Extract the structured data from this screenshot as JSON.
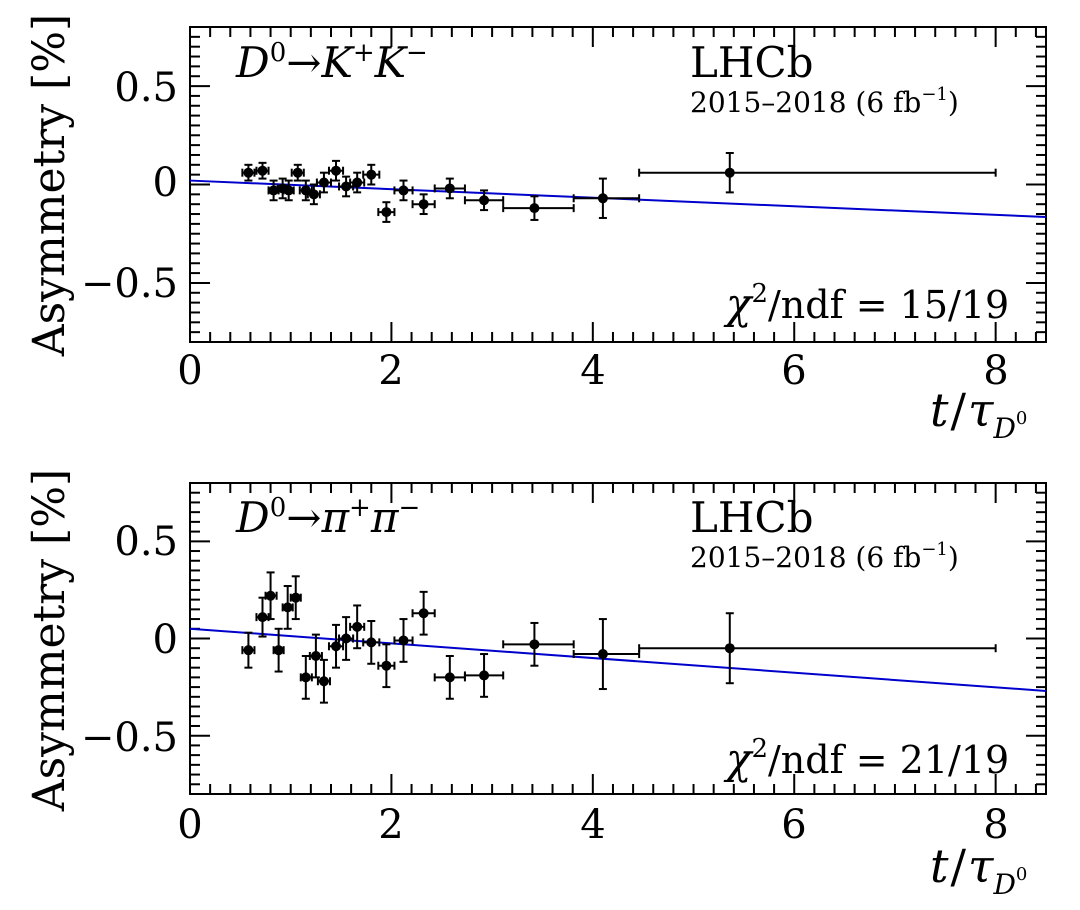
{
  "colors": {
    "fit": "#0000cc",
    "points": "#000000",
    "frame": "#000000"
  },
  "chart_data": [
    {
      "type": "scatter",
      "name": "kk",
      "decay_prefix": "D",
      "decay_prefix_sup": "0",
      "decay_arrow": "→",
      "decay_p1": "K",
      "decay_p1_sup": "+",
      "decay_p2": "K",
      "decay_p2_sup": "−",
      "experiment": "LHCb",
      "dataset_prefix": "2015–2018 (6 fb",
      "dataset_sup": "−1",
      "dataset_suffix": ")",
      "chi2_symbol": "χ",
      "chi2_sup": "2",
      "chi2_rest": "/ndf = 15/19",
      "ylabel": "Asymmetry [%]",
      "xlabel_t": "t",
      "xlabel_slash": "/",
      "xlabel_tau": "τ",
      "xlabel_sub": "D",
      "xlabel_subsup": "0",
      "xlim": [
        0,
        8.5
      ],
      "ylim": [
        -0.8,
        0.8
      ],
      "xticks": [
        0,
        2,
        4,
        6,
        8
      ],
      "xtick_labels": [
        "0",
        "2",
        "4",
        "6",
        "8"
      ],
      "yticks": [
        0.5,
        0,
        -0.5
      ],
      "ytick_labels": [
        "0.5",
        "0",
        "−0.5"
      ],
      "fit_line": {
        "x": [
          0,
          8.5
        ],
        "y": [
          0.02,
          -0.165
        ]
      },
      "points": [
        {
          "x": 0.58,
          "y": 0.06,
          "xlo": 0.52,
          "xhi": 0.64,
          "ylo": 0.02,
          "yhi": 0.1
        },
        {
          "x": 0.72,
          "y": 0.07,
          "xlo": 0.66,
          "xhi": 0.78,
          "ylo": 0.03,
          "yhi": 0.11
        },
        {
          "x": 0.83,
          "y": -0.03,
          "xlo": 0.78,
          "xhi": 0.88,
          "ylo": -0.08,
          "yhi": 0.02
        },
        {
          "x": 0.92,
          "y": -0.02,
          "xlo": 0.87,
          "xhi": 0.97,
          "ylo": -0.07,
          "yhi": 0.03
        },
        {
          "x": 0.98,
          "y": -0.03,
          "xlo": 0.93,
          "xhi": 1.03,
          "ylo": -0.08,
          "yhi": 0.02
        },
        {
          "x": 1.07,
          "y": 0.06,
          "xlo": 1.01,
          "xhi": 1.13,
          "ylo": 0.02,
          "yhi": 0.1
        },
        {
          "x": 1.15,
          "y": -0.03,
          "xlo": 1.09,
          "xhi": 1.21,
          "ylo": -0.08,
          "yhi": 0.02
        },
        {
          "x": 1.23,
          "y": -0.05,
          "xlo": 1.17,
          "xhi": 1.29,
          "ylo": -0.1,
          "yhi": 0.0
        },
        {
          "x": 1.33,
          "y": 0.01,
          "xlo": 1.26,
          "xhi": 1.4,
          "ylo": -0.04,
          "yhi": 0.06
        },
        {
          "x": 1.45,
          "y": 0.07,
          "xlo": 1.38,
          "xhi": 1.52,
          "ylo": 0.02,
          "yhi": 0.12
        },
        {
          "x": 1.55,
          "y": -0.01,
          "xlo": 1.48,
          "xhi": 1.62,
          "ylo": -0.06,
          "yhi": 0.04
        },
        {
          "x": 1.66,
          "y": 0.01,
          "xlo": 1.59,
          "xhi": 1.73,
          "ylo": -0.04,
          "yhi": 0.06
        },
        {
          "x": 1.8,
          "y": 0.05,
          "xlo": 1.72,
          "xhi": 1.88,
          "ylo": 0.0,
          "yhi": 0.1
        },
        {
          "x": 1.95,
          "y": -0.14,
          "xlo": 1.87,
          "xhi": 2.03,
          "ylo": -0.19,
          "yhi": -0.09
        },
        {
          "x": 2.12,
          "y": -0.03,
          "xlo": 2.03,
          "xhi": 2.21,
          "ylo": -0.08,
          "yhi": 0.02
        },
        {
          "x": 2.32,
          "y": -0.1,
          "xlo": 2.21,
          "xhi": 2.43,
          "ylo": -0.15,
          "yhi": -0.05
        },
        {
          "x": 2.58,
          "y": -0.02,
          "xlo": 2.43,
          "xhi": 2.73,
          "ylo": -0.07,
          "yhi": 0.03
        },
        {
          "x": 2.92,
          "y": -0.08,
          "xlo": 2.73,
          "xhi": 3.11,
          "ylo": -0.13,
          "yhi": -0.03
        },
        {
          "x": 3.42,
          "y": -0.12,
          "xlo": 3.11,
          "xhi": 3.81,
          "ylo": -0.18,
          "yhi": -0.06
        },
        {
          "x": 4.1,
          "y": -0.07,
          "xlo": 3.81,
          "xhi": 4.46,
          "ylo": -0.17,
          "yhi": 0.03
        },
        {
          "x": 5.36,
          "y": 0.06,
          "xlo": 4.46,
          "xhi": 8.0,
          "ylo": -0.04,
          "yhi": 0.16
        }
      ]
    },
    {
      "type": "scatter",
      "name": "pipi",
      "decay_prefix": "D",
      "decay_prefix_sup": "0",
      "decay_arrow": "→",
      "decay_p1": "π",
      "decay_p1_sup": "+",
      "decay_p2": "π",
      "decay_p2_sup": "−",
      "experiment": "LHCb",
      "dataset_prefix": "2015–2018 (6 fb",
      "dataset_sup": "−1",
      "dataset_suffix": ")",
      "chi2_symbol": "χ",
      "chi2_sup": "2",
      "chi2_rest": "/ndf = 21/19",
      "ylabel": "Asymmetry [%]",
      "xlabel_t": "t",
      "xlabel_slash": "/",
      "xlabel_tau": "τ",
      "xlabel_sub": "D",
      "xlabel_subsup": "0",
      "xlim": [
        0,
        8.5
      ],
      "ylim": [
        -0.8,
        0.8
      ],
      "xticks": [
        0,
        2,
        4,
        6,
        8
      ],
      "xtick_labels": [
        "0",
        "2",
        "4",
        "6",
        "8"
      ],
      "yticks": [
        0.5,
        0,
        -0.5
      ],
      "ytick_labels": [
        "0.5",
        "0",
        "−0.5"
      ],
      "fit_line": {
        "x": [
          0,
          8.5
        ],
        "y": [
          0.05,
          -0.27
        ]
      },
      "points": [
        {
          "x": 0.58,
          "y": -0.06,
          "xlo": 0.52,
          "xhi": 0.64,
          "ylo": -0.15,
          "yhi": 0.03
        },
        {
          "x": 0.72,
          "y": 0.11,
          "xlo": 0.66,
          "xhi": 0.78,
          "ylo": 0.01,
          "yhi": 0.21
        },
        {
          "x": 0.8,
          "y": 0.22,
          "xlo": 0.75,
          "xhi": 0.86,
          "ylo": 0.1,
          "yhi": 0.34
        },
        {
          "x": 0.88,
          "y": -0.06,
          "xlo": 0.83,
          "xhi": 0.93,
          "ylo": -0.17,
          "yhi": 0.05
        },
        {
          "x": 0.97,
          "y": 0.16,
          "xlo": 0.92,
          "xhi": 1.02,
          "ylo": 0.05,
          "yhi": 0.27
        },
        {
          "x": 1.05,
          "y": 0.21,
          "xlo": 1.0,
          "xhi": 1.1,
          "ylo": 0.1,
          "yhi": 0.32
        },
        {
          "x": 1.15,
          "y": -0.2,
          "xlo": 1.1,
          "xhi": 1.21,
          "ylo": -0.31,
          "yhi": -0.09
        },
        {
          "x": 1.25,
          "y": -0.09,
          "xlo": 1.19,
          "xhi": 1.31,
          "ylo": -0.2,
          "yhi": 0.02
        },
        {
          "x": 1.33,
          "y": -0.22,
          "xlo": 1.27,
          "xhi": 1.39,
          "ylo": -0.33,
          "yhi": -0.11
        },
        {
          "x": 1.45,
          "y": -0.04,
          "xlo": 1.38,
          "xhi": 1.52,
          "ylo": -0.15,
          "yhi": 0.07
        },
        {
          "x": 1.55,
          "y": 0.0,
          "xlo": 1.48,
          "xhi": 1.62,
          "ylo": -0.11,
          "yhi": 0.11
        },
        {
          "x": 1.66,
          "y": 0.06,
          "xlo": 1.59,
          "xhi": 1.73,
          "ylo": -0.05,
          "yhi": 0.17
        },
        {
          "x": 1.8,
          "y": -0.02,
          "xlo": 1.72,
          "xhi": 1.88,
          "ylo": -0.13,
          "yhi": 0.09
        },
        {
          "x": 1.95,
          "y": -0.14,
          "xlo": 1.87,
          "xhi": 2.03,
          "ylo": -0.25,
          "yhi": -0.03
        },
        {
          "x": 2.12,
          "y": -0.01,
          "xlo": 2.03,
          "xhi": 2.21,
          "ylo": -0.12,
          "yhi": 0.1
        },
        {
          "x": 2.32,
          "y": 0.13,
          "xlo": 2.21,
          "xhi": 2.43,
          "ylo": 0.02,
          "yhi": 0.24
        },
        {
          "x": 2.58,
          "y": -0.2,
          "xlo": 2.43,
          "xhi": 2.73,
          "ylo": -0.31,
          "yhi": -0.09
        },
        {
          "x": 2.92,
          "y": -0.19,
          "xlo": 2.73,
          "xhi": 3.11,
          "ylo": -0.3,
          "yhi": -0.08
        },
        {
          "x": 3.42,
          "y": -0.03,
          "xlo": 3.11,
          "xhi": 3.81,
          "ylo": -0.14,
          "yhi": 0.08
        },
        {
          "x": 4.1,
          "y": -0.08,
          "xlo": 3.81,
          "xhi": 4.46,
          "ylo": -0.26,
          "yhi": 0.1
        },
        {
          "x": 5.36,
          "y": -0.05,
          "xlo": 4.46,
          "xhi": 8.0,
          "ylo": -0.23,
          "yhi": 0.13
        }
      ]
    }
  ]
}
